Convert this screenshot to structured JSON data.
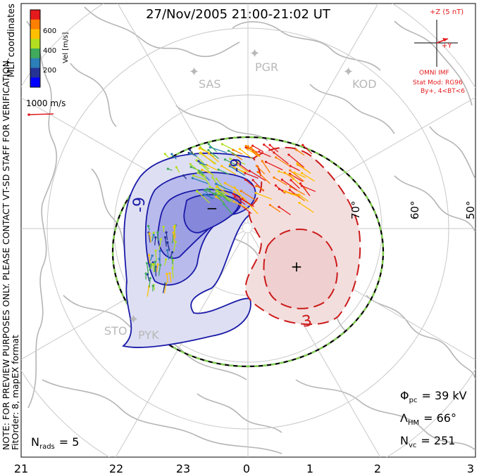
{
  "title": "27/Nov/2005 21:00-21:02 UT",
  "side_notes": {
    "coordinates": "MLT coordinates",
    "preview_note": "NOTE: FOR PREVIEW PURPOSES ONLY. PLEASE CONTACT VT-SD STAFF FOR VERIFICATION.",
    "fit_order": "FitOrder: 8, mapEX format"
  },
  "velocity_colorbar": {
    "label": "Vel [m/s]",
    "ticks": [
      "600",
      "400",
      "200"
    ],
    "colors": [
      "#e41a1c",
      "#ff7f00",
      "#ffbf00",
      "#b2df20",
      "#41ab5d",
      "#2c7fb8",
      "#253494",
      "#0000ff"
    ]
  },
  "reference_vector": {
    "label": "1000 m/s",
    "color": "#e41a1c"
  },
  "imf": {
    "z_label": "+Z (5 nT)",
    "y_label": "+Y",
    "source": "OMNI IMF",
    "stat_model": "Stat Mod: RG96",
    "condition": "By+, 4<BT<6",
    "color": "#e41a1c"
  },
  "stations": [
    {
      "name": "SAS",
      "icon": "station-star-icon"
    },
    {
      "name": "PGR",
      "icon": "station-star-icon"
    },
    {
      "name": "KOD",
      "icon": "station-star-icon"
    },
    {
      "name": "STO",
      "icon": "station-star-icon"
    },
    {
      "name": "PYK",
      "icon": "station-star-icon"
    }
  ],
  "latitude_labels": [
    "70°",
    "60°",
    "50°"
  ],
  "contours": {
    "negative_label": "-9",
    "negative_label_2": "-9",
    "positive_label": "3",
    "min_marker": "−",
    "max_marker": "+",
    "negative_color": "#1a1aa8",
    "positive_color": "#cc1a1a"
  },
  "stats": {
    "phi_pc_label": "Φ",
    "phi_pc_sub": "pc",
    "phi_pc_value": "= 39 kV",
    "lambda_hm_label": "Λ",
    "lambda_hm_sub": "HM",
    "lambda_hm_value": "= 66°",
    "n_vc_label": "N",
    "n_vc_sub": "vc",
    "n_vc_value": "= 251",
    "n_rads_label": "N",
    "n_rads_sub": "rads",
    "n_rads_value": "= 5"
  },
  "mlt_axis": [
    "21",
    "22",
    "23",
    "0",
    "1",
    "2",
    "3"
  ]
}
